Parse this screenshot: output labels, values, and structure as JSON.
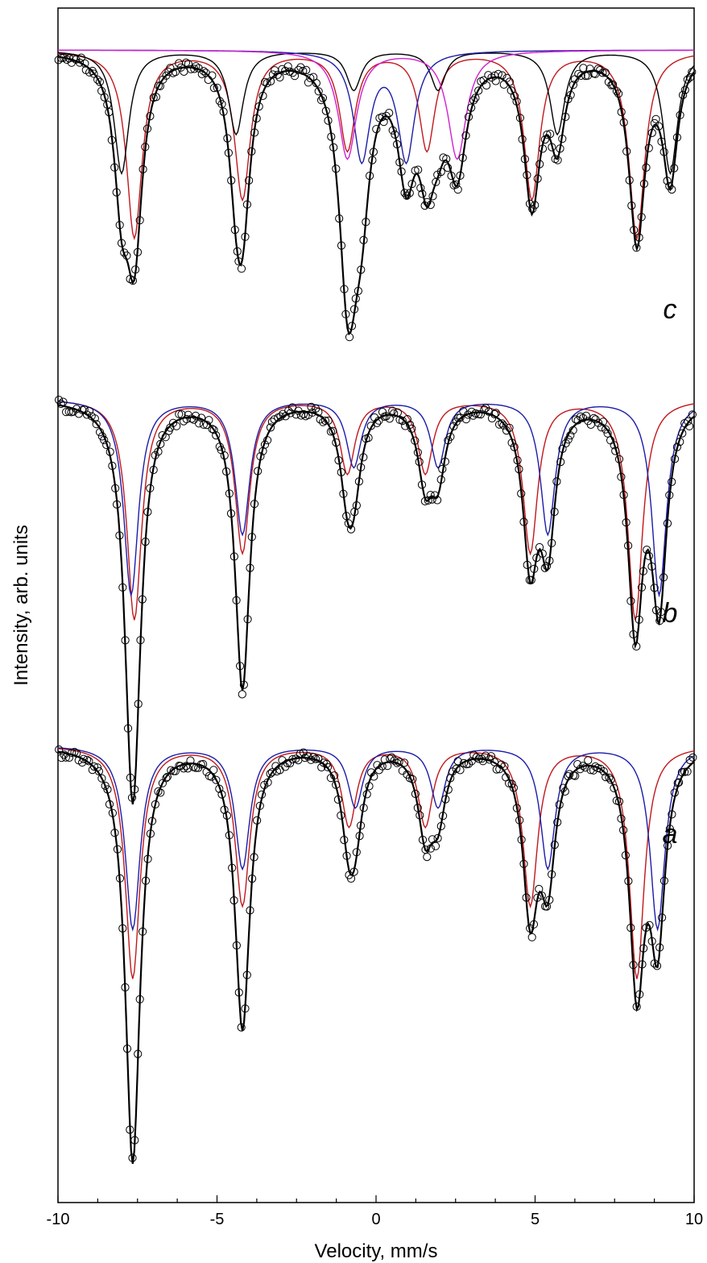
{
  "chart_data": {
    "type": "line",
    "title": "",
    "xlabel": "Velocity, mm/s",
    "ylabel": "Intensity, arb. units",
    "xlim": [
      -10,
      10
    ],
    "xticks": [
      -10,
      -5,
      0,
      5,
      10
    ],
    "grid": false,
    "legend": "none",
    "colors": {
      "data_points": "#000000",
      "total_fit": "#000000",
      "sextet_red": "#c0181c",
      "sextet_blue": "#1c1ca8",
      "sextet_black": "#000000",
      "doublet_magenta": "#d020d0"
    },
    "panels": [
      {
        "label": "a",
        "baseline": 1.0,
        "components": [
          {
            "color_key": "sextet_red",
            "kind": "sextet",
            "lines": [
              -7.65,
              -4.2,
              -0.85,
              1.55,
              4.85,
              8.2
            ],
            "depths": [
              0.38,
              0.26,
              0.13,
              0.13,
              0.26,
              0.38
            ],
            "width": 0.28
          },
          {
            "color_key": "sextet_blue",
            "kind": "sextet",
            "lines": [
              -7.65,
              -4.2,
              -0.65,
              1.95,
              5.4,
              8.85
            ],
            "depths": [
              0.3,
              0.2,
              0.1,
              0.1,
              0.2,
              0.3
            ],
            "width": 0.28
          }
        ]
      },
      {
        "label": "b",
        "baseline": 1.0,
        "components": [
          {
            "color_key": "sextet_red",
            "kind": "sextet",
            "lines": [
              -7.6,
              -4.2,
              -0.9,
              1.55,
              4.85,
              8.15
            ],
            "depths": [
              0.36,
              0.25,
              0.12,
              0.12,
              0.25,
              0.36
            ],
            "width": 0.28
          },
          {
            "color_key": "sextet_blue",
            "kind": "sextet",
            "lines": [
              -7.7,
              -4.2,
              -0.7,
              1.95,
              5.4,
              8.9
            ],
            "depths": [
              0.32,
              0.22,
              0.11,
              0.11,
              0.22,
              0.32
            ],
            "width": 0.28
          }
        ]
      },
      {
        "label": "c",
        "baseline": 1.0,
        "components": [
          {
            "color_key": "sextet_red",
            "kind": "sextet",
            "lines": [
              -7.6,
              -4.2,
              -0.9,
              1.6,
              4.9,
              8.2
            ],
            "depths": [
              0.38,
              0.3,
              0.2,
              0.2,
              0.3,
              0.38
            ],
            "width": 0.3
          },
          {
            "color_key": "sextet_black",
            "kind": "sextet",
            "lines": [
              -8.0,
              -4.4,
              -0.7,
              1.95,
              5.7,
              9.25
            ],
            "depths": [
              0.25,
              0.17,
              0.08,
              0.08,
              0.17,
              0.25
            ],
            "width": 0.28
          },
          {
            "color_key": "sextet_blue",
            "kind": "doublet",
            "lines": [
              -0.45,
              0.95
            ],
            "depths": [
              0.22,
              0.22
            ],
            "width": 0.32
          },
          {
            "color_key": "doublet_magenta",
            "kind": "doublet",
            "lines": [
              -0.9,
              2.55
            ],
            "depths": [
              0.22,
              0.22
            ],
            "width": 0.35
          }
        ]
      }
    ]
  }
}
